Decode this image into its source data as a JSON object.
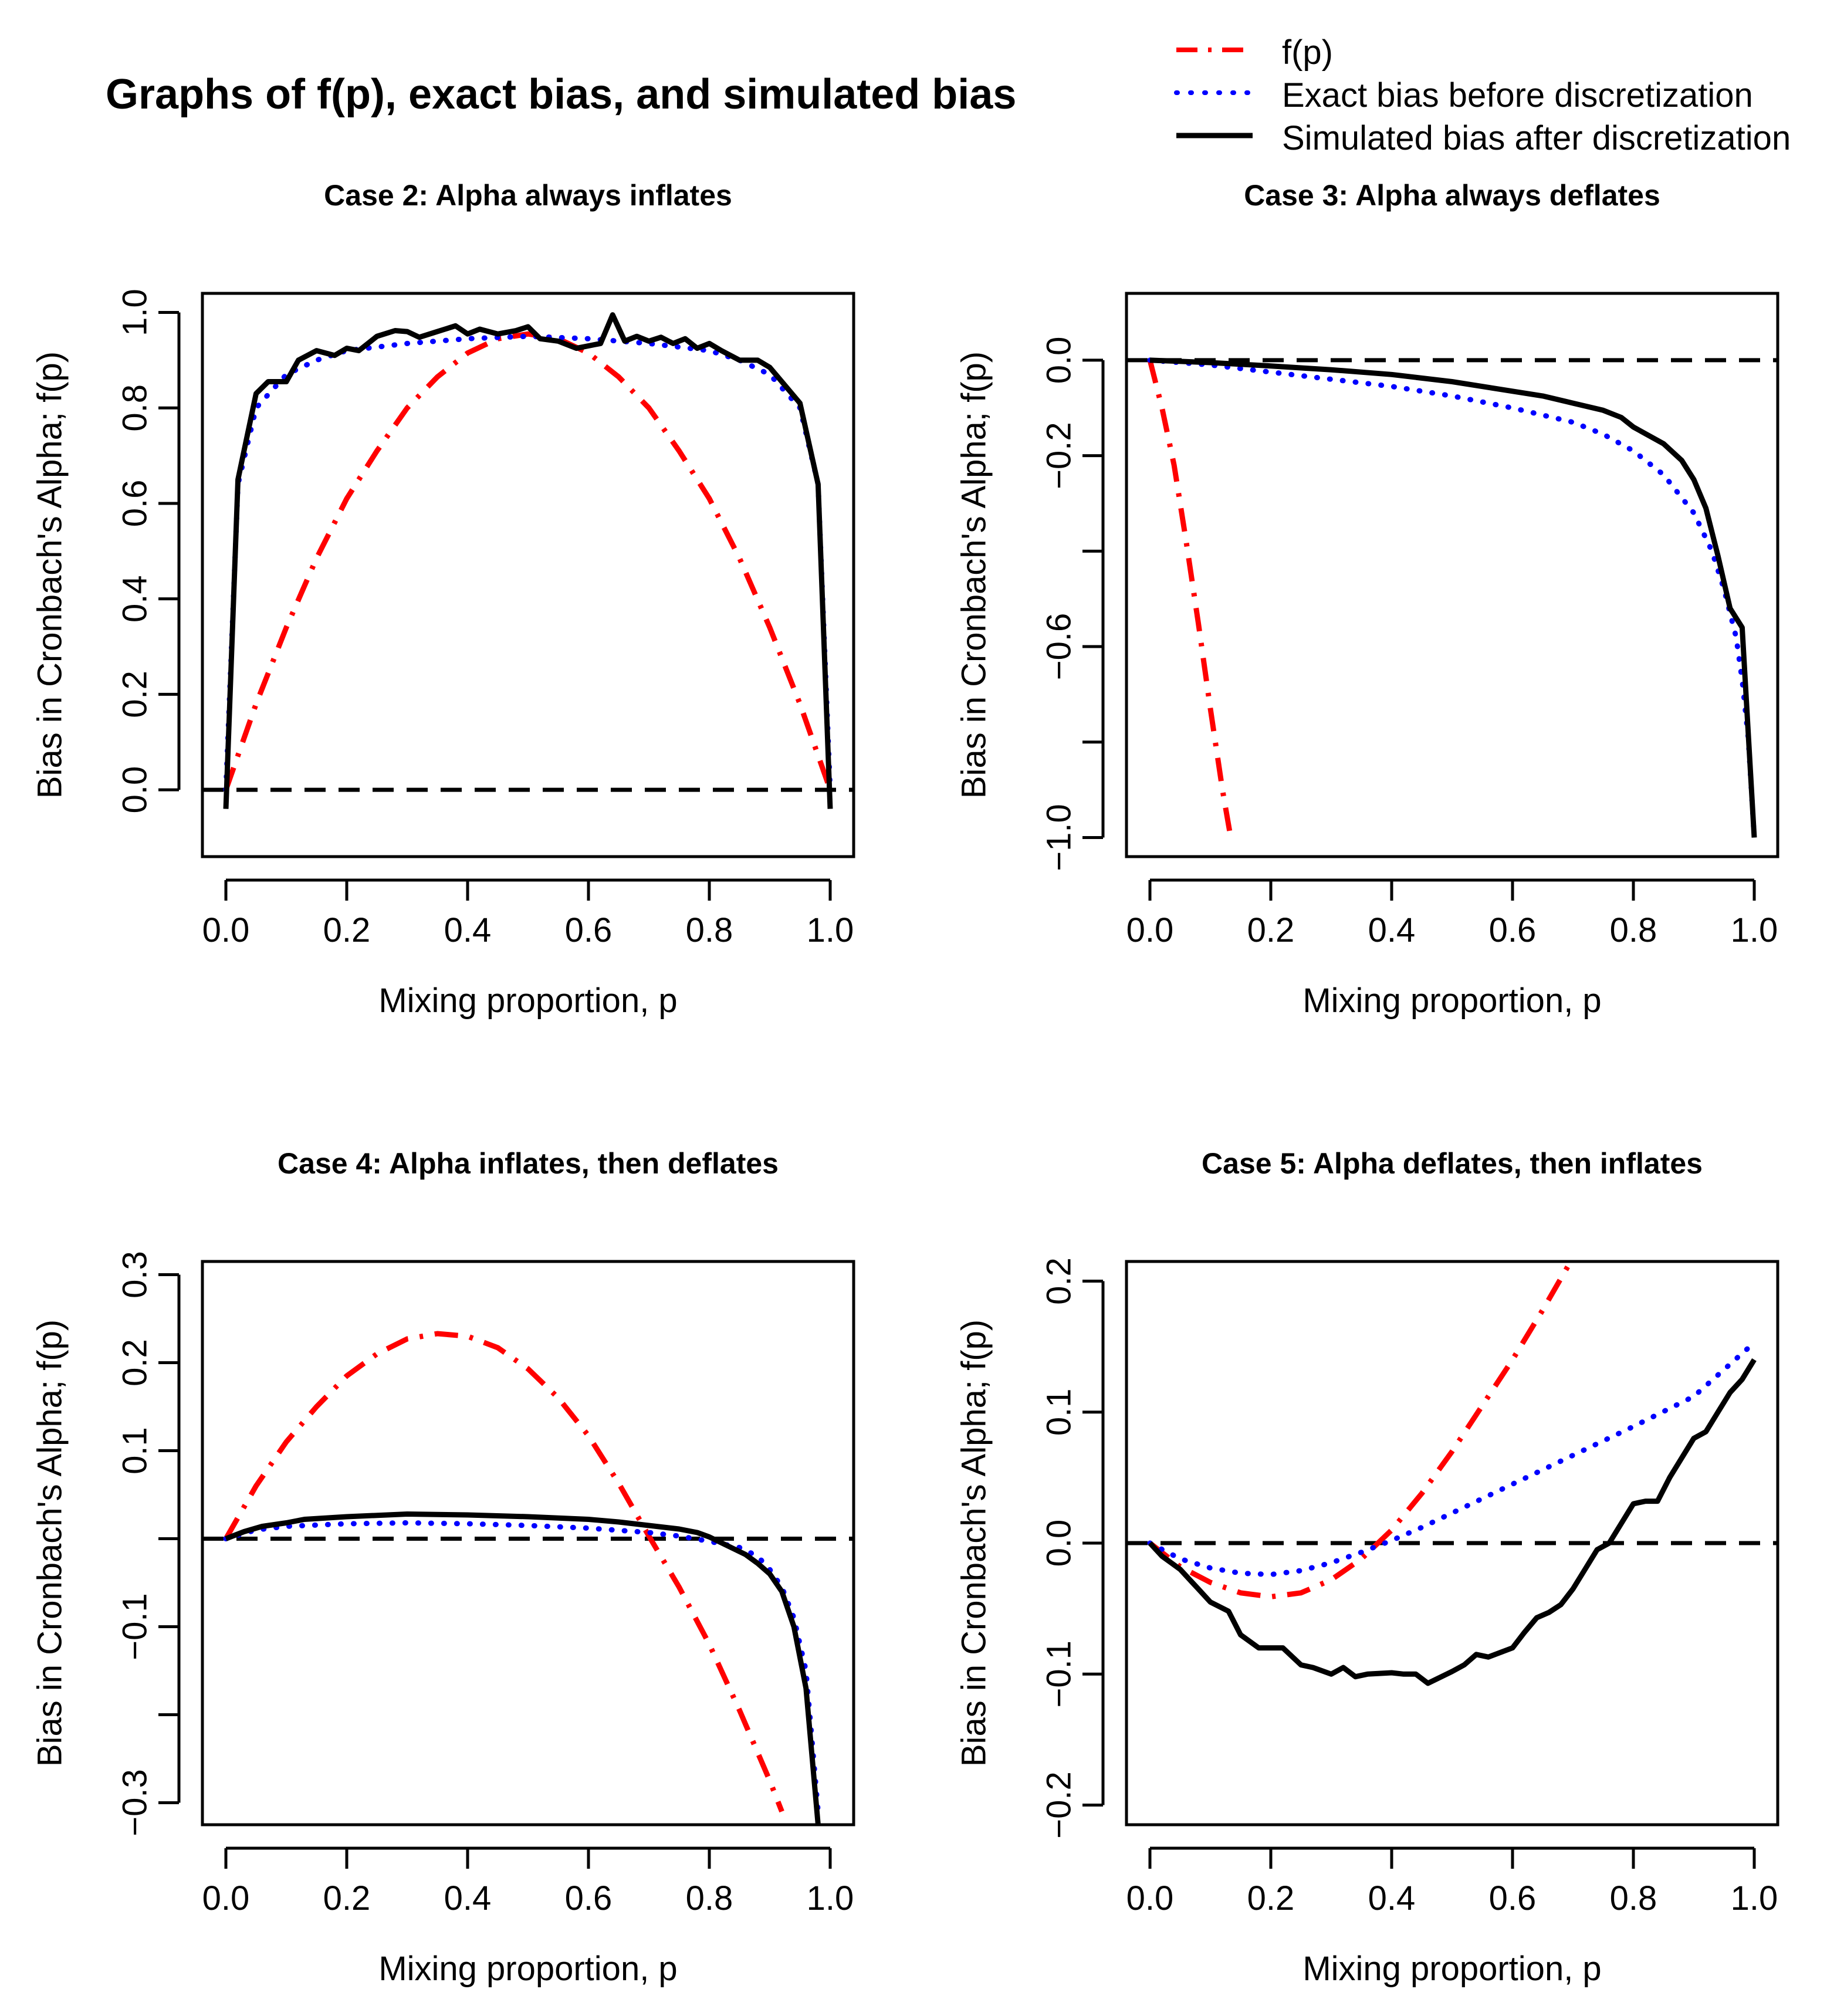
{
  "title": "Graphs of f(p), exact bias, and simulated bias",
  "legend": {
    "items": [
      {
        "label": "f(p)",
        "color": "#ff0000",
        "style": "dashdot"
      },
      {
        "label": "Exact bias before discretization",
        "color": "#0000ff",
        "style": "dotted"
      },
      {
        "label": "Simulated bias after discretization",
        "color": "#000000",
        "style": "solid"
      }
    ]
  },
  "chart_data": [
    {
      "type": "line",
      "title": "Case 2: Alpha always inflates",
      "xlabel": "Mixing proportion, p",
      "ylabel": "Bias in Cronbach's Alpha; f(p)",
      "xlim": [
        0,
        1
      ],
      "ylim": [
        -0.14,
        1.04
      ],
      "xticks": [
        0,
        0.2,
        0.4,
        0.6,
        0.8,
        1
      ],
      "xtick_labels": [
        "0.0",
        "0.2",
        "0.4",
        "0.6",
        "0.8",
        "1.0"
      ],
      "yticks": [
        0,
        0.2,
        0.4,
        0.6,
        0.8,
        1
      ],
      "ytick_labels": [
        "0.0",
        "0.2",
        "0.4",
        "0.6",
        "0.8",
        "1.0"
      ],
      "hline": 0,
      "series": [
        {
          "name": "f(p)",
          "color": "#ff0000",
          "style": "dashdot",
          "x": [
            0,
            0.05,
            0.1,
            0.15,
            0.2,
            0.25,
            0.3,
            0.35,
            0.4,
            0.45,
            0.5,
            0.55,
            0.6,
            0.65,
            0.7,
            0.75,
            0.8,
            0.85,
            0.9,
            0.95,
            1
          ],
          "y": [
            0,
            0.18,
            0.34,
            0.485,
            0.61,
            0.71,
            0.8,
            0.865,
            0.915,
            0.945,
            0.955,
            0.945,
            0.915,
            0.865,
            0.8,
            0.71,
            0.61,
            0.485,
            0.34,
            0.18,
            0
          ]
        },
        {
          "name": "Exact bias before discretization",
          "color": "#0000ff",
          "style": "dotted",
          "x": [
            0,
            0.02,
            0.05,
            0.1,
            0.15,
            0.2,
            0.3,
            0.4,
            0.5,
            0.6,
            0.7,
            0.8,
            0.85,
            0.9,
            0.95,
            0.98,
            1
          ],
          "y": [
            0,
            0.64,
            0.8,
            0.87,
            0.9,
            0.92,
            0.935,
            0.945,
            0.95,
            0.945,
            0.935,
            0.92,
            0.9,
            0.87,
            0.8,
            0.64,
            0
          ]
        },
        {
          "name": "Simulated bias after discretization",
          "color": "#000000",
          "style": "solid",
          "x": [
            0,
            0.02,
            0.05,
            0.07,
            0.1,
            0.12,
            0.15,
            0.18,
            0.2,
            0.22,
            0.25,
            0.28,
            0.3,
            0.32,
            0.35,
            0.38,
            0.4,
            0.42,
            0.45,
            0.48,
            0.5,
            0.52,
            0.55,
            0.58,
            0.6,
            0.62,
            0.64,
            0.66,
            0.68,
            0.7,
            0.72,
            0.74,
            0.76,
            0.78,
            0.8,
            0.82,
            0.85,
            0.88,
            0.9,
            0.95,
            0.98,
            1
          ],
          "y": [
            -0.04,
            0.65,
            0.83,
            0.855,
            0.855,
            0.9,
            0.92,
            0.91,
            0.925,
            0.92,
            0.95,
            0.962,
            0.96,
            0.948,
            0.96,
            0.972,
            0.955,
            0.965,
            0.955,
            0.962,
            0.97,
            0.945,
            0.94,
            0.925,
            0.93,
            0.935,
            0.995,
            0.94,
            0.95,
            0.94,
            0.948,
            0.935,
            0.945,
            0.925,
            0.935,
            0.92,
            0.9,
            0.9,
            0.885,
            0.81,
            0.64,
            -0.04
          ]
        }
      ]
    },
    {
      "type": "line",
      "title": "Case 3: Alpha always deflates",
      "xlabel": "Mixing proportion, p",
      "ylabel": "Bias in Cronbach's Alpha; f(p)",
      "xlim": [
        0,
        1
      ],
      "ylim": [
        -1.04,
        0.14
      ],
      "xticks": [
        0,
        0.2,
        0.4,
        0.6,
        0.8,
        1
      ],
      "xtick_labels": [
        "0.0",
        "0.2",
        "0.4",
        "0.6",
        "0.8",
        "1.0"
      ],
      "yticks": [
        0,
        -0.2,
        -0.4,
        -0.6,
        -0.8,
        -1
      ],
      "ytick_labels": [
        "0.0",
        "−0.2",
        "",
        "−0.6",
        "",
        "−1.0"
      ],
      "hline": 0,
      "series": [
        {
          "name": "f(p)",
          "color": "#ff0000",
          "style": "dashdot",
          "x": [
            0,
            0.02,
            0.04,
            0.06,
            0.08,
            0.1,
            0.12,
            0.135
          ],
          "y": [
            0,
            -0.1,
            -0.22,
            -0.38,
            -0.55,
            -0.73,
            -0.9,
            -1.01
          ]
        },
        {
          "name": "Exact bias before discretization",
          "color": "#0000ff",
          "style": "dotted",
          "x": [
            0,
            0.1,
            0.2,
            0.3,
            0.4,
            0.5,
            0.6,
            0.7,
            0.75,
            0.8,
            0.85,
            0.9,
            0.93,
            0.95,
            0.97,
            0.98,
            0.99,
            1
          ],
          "y": [
            0,
            -0.01,
            -0.025,
            -0.04,
            -0.055,
            -0.075,
            -0.1,
            -0.13,
            -0.155,
            -0.19,
            -0.24,
            -0.32,
            -0.4,
            -0.48,
            -0.58,
            -0.67,
            -0.79,
            -1
          ]
        },
        {
          "name": "Simulated bias after discretization",
          "color": "#000000",
          "style": "solid",
          "x": [
            0,
            0.1,
            0.2,
            0.3,
            0.4,
            0.5,
            0.6,
            0.65,
            0.7,
            0.75,
            0.78,
            0.8,
            0.85,
            0.88,
            0.9,
            0.92,
            0.94,
            0.96,
            0.98,
            1
          ],
          "y": [
            0,
            -0.005,
            -0.012,
            -0.02,
            -0.03,
            -0.045,
            -0.065,
            -0.075,
            -0.09,
            -0.105,
            -0.12,
            -0.14,
            -0.175,
            -0.21,
            -0.25,
            -0.31,
            -0.41,
            -0.52,
            -0.56,
            -1
          ]
        }
      ]
    },
    {
      "type": "line",
      "title": "Case 4: Alpha inflates, then deflates",
      "xlabel": "Mixing proportion, p",
      "ylabel": "Bias in Cronbach's Alpha; f(p)",
      "xlim": [
        0,
        1
      ],
      "ylim": [
        -0.325,
        0.315
      ],
      "xticks": [
        0,
        0.2,
        0.4,
        0.6,
        0.8,
        1
      ],
      "xtick_labels": [
        "0.0",
        "0.2",
        "0.4",
        "0.6",
        "0.8",
        "1.0"
      ],
      "yticks": [
        0.3,
        0.2,
        0.1,
        0,
        -0.1,
        -0.2,
        -0.3
      ],
      "ytick_labels": [
        "0.3",
        "0.2",
        "0.1",
        "",
        "−0.1",
        "",
        "−0.3"
      ],
      "hline": 0,
      "series": [
        {
          "name": "f(p)",
          "color": "#ff0000",
          "style": "dashdot",
          "x": [
            0,
            0.05,
            0.1,
            0.15,
            0.2,
            0.25,
            0.3,
            0.35,
            0.4,
            0.45,
            0.5,
            0.55,
            0.6,
            0.65,
            0.7,
            0.75,
            0.8,
            0.85,
            0.9,
            0.92
          ],
          "y": [
            0,
            0.06,
            0.11,
            0.15,
            0.185,
            0.21,
            0.227,
            0.233,
            0.23,
            0.217,
            0.193,
            0.16,
            0.117,
            0.063,
            0.003,
            -0.055,
            -0.12,
            -0.195,
            -0.275,
            -0.31
          ]
        },
        {
          "name": "Exact bias before discretization",
          "color": "#0000ff",
          "style": "dotted",
          "x": [
            0,
            0.05,
            0.1,
            0.2,
            0.3,
            0.4,
            0.5,
            0.6,
            0.7,
            0.75,
            0.8,
            0.85,
            0.88,
            0.9,
            0.92,
            0.94,
            0.96,
            0.98
          ],
          "y": [
            0,
            0.01,
            0.014,
            0.017,
            0.018,
            0.017,
            0.015,
            0.012,
            0.007,
            0.003,
            -0.003,
            -0.01,
            -0.02,
            -0.035,
            -0.055,
            -0.09,
            -0.15,
            -0.31
          ]
        },
        {
          "name": "Simulated bias after discretization",
          "color": "#000000",
          "style": "solid",
          "x": [
            0,
            0.03,
            0.06,
            0.1,
            0.13,
            0.2,
            0.3,
            0.4,
            0.5,
            0.6,
            0.65,
            0.7,
            0.75,
            0.78,
            0.8,
            0.83,
            0.86,
            0.88,
            0.9,
            0.92,
            0.94,
            0.96,
            0.98
          ],
          "y": [
            0,
            0.008,
            0.014,
            0.018,
            0.022,
            0.025,
            0.028,
            0.027,
            0.025,
            0.022,
            0.019,
            0.015,
            0.011,
            0.007,
            0.002,
            -0.008,
            -0.018,
            -0.028,
            -0.04,
            -0.06,
            -0.1,
            -0.17,
            -0.325
          ]
        }
      ]
    },
    {
      "type": "line",
      "title": "Case 5: Alpha deflates, then inflates",
      "xlabel": "Mixing proportion, p",
      "ylabel": "Bias in Cronbach's Alpha; f(p)",
      "xlim": [
        0,
        1
      ],
      "ylim": [
        -0.215,
        0.215
      ],
      "xticks": [
        0,
        0.2,
        0.4,
        0.6,
        0.8,
        1
      ],
      "xtick_labels": [
        "0.0",
        "0.2",
        "0.4",
        "0.6",
        "0.8",
        "1.0"
      ],
      "yticks": [
        0.2,
        0.1,
        0,
        -0.1,
        -0.2
      ],
      "ytick_labels": [
        "0.2",
        "0.1",
        "0.0",
        "−0.1",
        "−0.2"
      ],
      "hline": 0,
      "series": [
        {
          "name": "f(p)",
          "color": "#ff0000",
          "style": "dashdot",
          "x": [
            0,
            0.05,
            0.1,
            0.15,
            0.2,
            0.25,
            0.3,
            0.35,
            0.4,
            0.45,
            0.5,
            0.55,
            0.6,
            0.65,
            0.7
          ],
          "y": [
            0,
            -0.018,
            -0.03,
            -0.038,
            -0.041,
            -0.038,
            -0.028,
            -0.012,
            0.01,
            0.038,
            0.07,
            0.105,
            0.14,
            0.178,
            0.218
          ]
        },
        {
          "name": "Exact bias before discretization",
          "color": "#0000ff",
          "style": "dotted",
          "x": [
            0,
            0.05,
            0.1,
            0.15,
            0.2,
            0.25,
            0.3,
            0.35,
            0.4,
            0.45,
            0.5,
            0.6,
            0.7,
            0.8,
            0.9,
            1
          ],
          "y": [
            0,
            -0.012,
            -0.019,
            -0.023,
            -0.024,
            -0.021,
            -0.015,
            -0.007,
            0.002,
            0.012,
            0.023,
            0.045,
            0.067,
            0.089,
            0.112,
            0.153
          ]
        },
        {
          "name": "Simulated bias after discretization",
          "color": "#000000",
          "style": "solid",
          "x": [
            0,
            0.02,
            0.05,
            0.08,
            0.1,
            0.13,
            0.15,
            0.18,
            0.2,
            0.22,
            0.25,
            0.27,
            0.3,
            0.32,
            0.34,
            0.36,
            0.4,
            0.42,
            0.44,
            0.46,
            0.5,
            0.52,
            0.54,
            0.56,
            0.6,
            0.62,
            0.64,
            0.66,
            0.68,
            0.7,
            0.72,
            0.74,
            0.76,
            0.78,
            0.8,
            0.82,
            0.84,
            0.86,
            0.88,
            0.9,
            0.92,
            0.94,
            0.96,
            0.98,
            1
          ],
          "y": [
            0,
            -0.01,
            -0.02,
            -0.035,
            -0.045,
            -0.052,
            -0.07,
            -0.08,
            -0.08,
            -0.08,
            -0.093,
            -0.095,
            -0.1,
            -0.095,
            -0.102,
            -0.1,
            -0.099,
            -0.1,
            -0.1,
            -0.107,
            -0.098,
            -0.093,
            -0.085,
            -0.087,
            -0.08,
            -0.068,
            -0.057,
            -0.053,
            -0.047,
            -0.035,
            -0.02,
            -0.005,
            0,
            0.015,
            0.03,
            0.032,
            0.032,
            0.05,
            0.065,
            0.08,
            0.085,
            0.1,
            0.115,
            0.125,
            0.14
          ]
        }
      ]
    }
  ]
}
